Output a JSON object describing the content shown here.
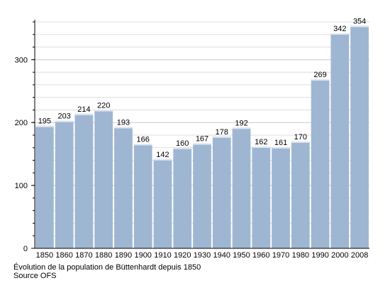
{
  "chart_data": {
    "type": "bar",
    "categories": [
      "1850",
      "1860",
      "1870",
      "1880",
      "1890",
      "1900",
      "1910",
      "1920",
      "1930",
      "1940",
      "1950",
      "1960",
      "1970",
      "1980",
      "1990",
      "2000",
      "2008"
    ],
    "values": [
      195,
      203,
      214,
      220,
      193,
      166,
      142,
      160,
      167,
      178,
      192,
      162,
      161,
      170,
      269,
      342,
      354
    ],
    "ylim": [
      0,
      360
    ],
    "yticks": [
      0,
      100,
      200,
      300
    ],
    "grid": true,
    "bar_color": "#9fb6d3",
    "grid_color": "#dddddd"
  },
  "caption": {
    "line1": "Évolution de la population de Büttenhardt depuis 1850",
    "line2": "Source OFS"
  }
}
